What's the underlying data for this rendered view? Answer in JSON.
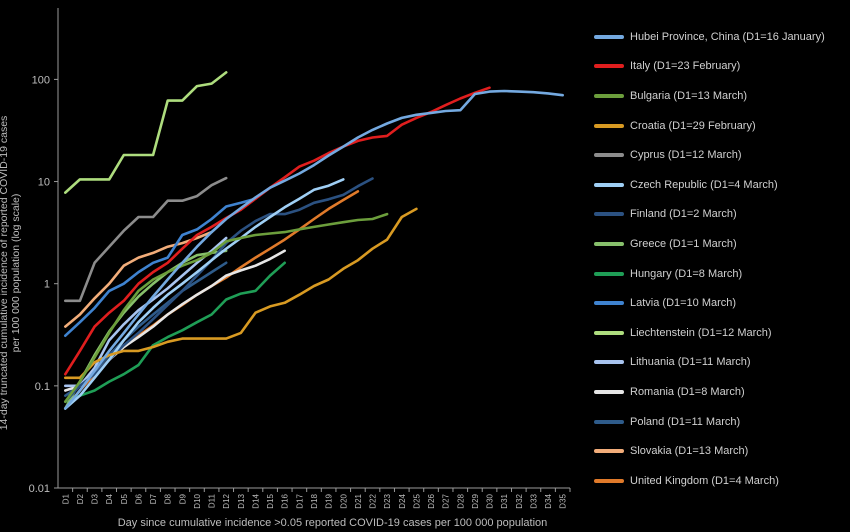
{
  "chart_data": {
    "type": "line",
    "xlabel": "Day since cumulative incidence >0.05 reported COVID-19 cases per 100 000 population",
    "ylabel": "14-day truncated cumulative incidence of reported COVID-19 cases per 100 000 population (log scale)",
    "yscale": "log",
    "ylim": [
      0.01,
      500
    ],
    "y_ticks": [
      "0.01",
      "0.1",
      "1",
      "10",
      "100"
    ],
    "x_categories": [
      "D1",
      "D2",
      "D3",
      "D4",
      "D5",
      "D6",
      "D7",
      "D8",
      "D9",
      "D10",
      "D11",
      "D12",
      "D13",
      "D14",
      "D15",
      "D16",
      "D17",
      "D18",
      "D19",
      "D20",
      "D21",
      "D22",
      "D23",
      "D24",
      "D25",
      "D26",
      "D27",
      "D28",
      "D29",
      "D30",
      "D31",
      "D32",
      "D33",
      "D34",
      "D35"
    ],
    "legend_position": "right",
    "series": [
      {
        "name": "Hubei Province, China (D1=16 January)",
        "color": "#74a9e0",
        "values": [
          0.06,
          0.09,
          0.14,
          0.22,
          0.33,
          0.5,
          0.75,
          1.1,
          1.6,
          2.3,
          3.2,
          4.3,
          5.5,
          7.0,
          8.7,
          10.2,
          12.0,
          14.5,
          18,
          22,
          27,
          32,
          37,
          42,
          45,
          47,
          49,
          50,
          72,
          76,
          77,
          76,
          75,
          73,
          70
        ]
      },
      {
        "name": "Italy (D1=23 February)",
        "color": "#e01e1e",
        "values": [
          0.13,
          0.22,
          0.38,
          0.52,
          0.68,
          1.0,
          1.3,
          1.6,
          2.2,
          3.0,
          3.6,
          4.4,
          5.3,
          6.8,
          8.7,
          11,
          14,
          16,
          19,
          22,
          25,
          27,
          28,
          36,
          42,
          48,
          56,
          65,
          74,
          83
        ]
      },
      {
        "name": "Bulgaria (D1=13 March)",
        "color": "#6c9e3c",
        "values": [
          0.07,
          0.11,
          0.19,
          0.33,
          0.55,
          0.85,
          1.1,
          1.3,
          1.5,
          1.7,
          2.0,
          2.6,
          2.8,
          3.0,
          3.1,
          3.2,
          3.4,
          3.6,
          3.8,
          4.0,
          4.2,
          4.3,
          4.8
        ]
      },
      {
        "name": "Croatia (D1=29 February)",
        "color": "#d89a22",
        "values": [
          0.12,
          0.12,
          0.17,
          0.2,
          0.22,
          0.22,
          0.24,
          0.27,
          0.29,
          0.29,
          0.29,
          0.29,
          0.33,
          0.52,
          0.6,
          0.65,
          0.78,
          0.95,
          1.1,
          1.4,
          1.7,
          2.2,
          2.7,
          4.5,
          5.4
        ]
      },
      {
        "name": "Cyprus (D1=12 March)",
        "color": "#8c8c8c",
        "values": [
          0.68,
          0.68,
          1.6,
          2.3,
          3.3,
          4.5,
          4.5,
          6.5,
          6.5,
          7.2,
          9.2,
          10.8
        ]
      },
      {
        "name": "Czech Republic (D1=4 March)",
        "color": "#9fcff5",
        "values": [
          0.06,
          0.08,
          0.12,
          0.18,
          0.28,
          0.42,
          0.58,
          0.78,
          1.0,
          1.3,
          1.7,
          2.2,
          2.8,
          3.6,
          4.5,
          5.6,
          6.8,
          8.3,
          9.1,
          10.5
        ]
      },
      {
        "name": "Finland (D1=2 March)",
        "color": "#2b5181",
        "values": [
          0.07,
          0.1,
          0.13,
          0.18,
          0.25,
          0.33,
          0.45,
          0.62,
          0.85,
          1.2,
          1.7,
          2.5,
          3.3,
          4.1,
          4.8,
          4.8,
          5.3,
          6.2,
          6.7,
          7.4,
          9.0,
          10.7
        ]
      },
      {
        "name": "Greece (D1=1 March)",
        "color": "#87c06b",
        "values": [
          0.06,
          0.11,
          0.2,
          0.34,
          0.52,
          0.75,
          1.0,
          1.3,
          1.6,
          1.9,
          2.0,
          2.1
        ]
      },
      {
        "name": "Hungary (D1=8 March)",
        "color": "#1f9e56",
        "values": [
          0.07,
          0.08,
          0.09,
          0.11,
          0.13,
          0.16,
          0.25,
          0.3,
          0.35,
          0.42,
          0.5,
          0.7,
          0.8,
          0.85,
          1.2,
          1.6
        ]
      },
      {
        "name": "Latvia (D1=10 March)",
        "color": "#3f83d0",
        "values": [
          0.31,
          0.42,
          0.58,
          0.85,
          1.0,
          1.3,
          1.6,
          1.8,
          3.0,
          3.4,
          4.3,
          5.7,
          6.2,
          6.8
        ]
      },
      {
        "name": "Liechtenstein (D1=12 March)",
        "color": "#aedd7e",
        "values": [
          7.8,
          10.5,
          10.5,
          10.5,
          18.2,
          18.2,
          18.2,
          62,
          62,
          86,
          91,
          117
        ]
      },
      {
        "name": "Lithuania (D1=11 March)",
        "color": "#a8c4f0",
        "values": [
          0.1,
          0.1,
          0.15,
          0.28,
          0.4,
          0.55,
          0.7,
          0.9,
          1.2,
          1.6,
          2.1,
          2.8
        ]
      },
      {
        "name": "Romania (D1=8 March)",
        "color": "#e6e6e6",
        "values": [
          0.09,
          0.1,
          0.13,
          0.18,
          0.24,
          0.3,
          0.38,
          0.5,
          0.63,
          0.78,
          0.95,
          1.2,
          1.35,
          1.5,
          1.75,
          2.1
        ]
      },
      {
        "name": "Poland (D1=11 March)",
        "color": "#2e5b8a",
        "values": [
          0.08,
          0.1,
          0.14,
          0.2,
          0.28,
          0.38,
          0.5,
          0.65,
          0.85,
          1.05,
          1.3,
          1.6
        ]
      },
      {
        "name": "Slovakia (D1=13 March)",
        "color": "#f2ad7a",
        "values": [
          0.38,
          0.5,
          0.72,
          1.0,
          1.5,
          1.8,
          2.0,
          2.3,
          2.5,
          2.8,
          3.2
        ]
      },
      {
        "name": "United Kingdom (D1=4 March)",
        "color": "#e07a2a",
        "values": [
          0.06,
          0.09,
          0.13,
          0.18,
          0.24,
          0.31,
          0.39,
          0.5,
          0.62,
          0.78,
          0.95,
          1.15,
          1.45,
          1.8,
          2.2,
          2.7,
          3.4,
          4.3,
          5.4,
          6.6,
          8.0
        ]
      }
    ]
  }
}
